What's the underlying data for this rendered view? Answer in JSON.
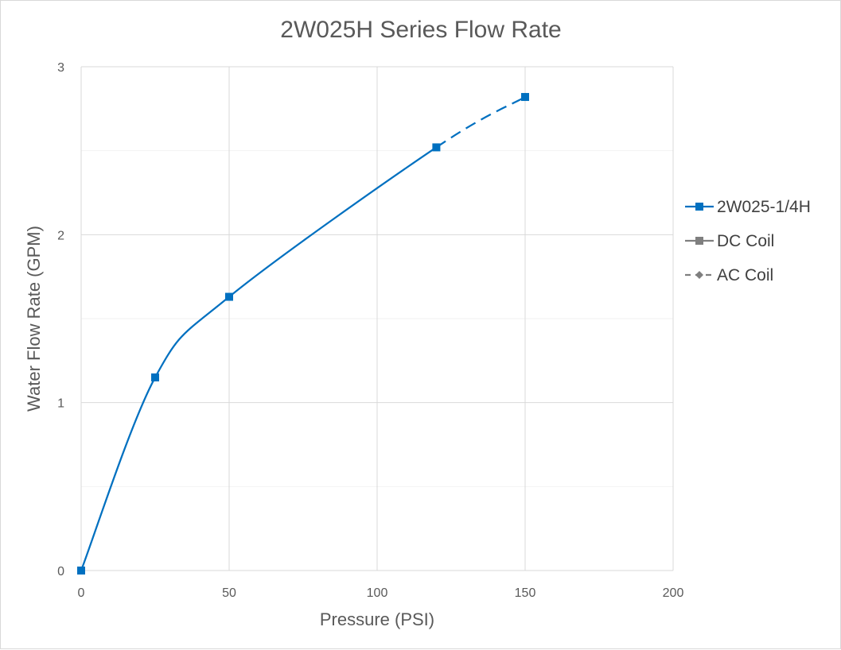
{
  "chart_data": {
    "type": "line",
    "title": "2W025H Series Flow Rate",
    "xlabel": "Pressure (PSI)",
    "ylabel": "Water Flow Rate (GPM)",
    "xlim": [
      0,
      200
    ],
    "ylim": [
      0,
      3
    ],
    "x_ticks": [
      0,
      50,
      100,
      150,
      200
    ],
    "y_ticks": [
      0,
      1,
      2,
      3
    ],
    "grid": true,
    "legend_position": "right",
    "series": [
      {
        "name": "2W025-1/4H",
        "color": "#0070c0",
        "marker": "square",
        "line_style": "solid-then-dashed",
        "x": [
          0,
          25,
          50,
          120,
          150
        ],
        "y": [
          0,
          1.15,
          1.63,
          2.52,
          2.82
        ]
      }
    ],
    "legend": [
      {
        "label": "2W025-1/4H",
        "color": "#0070c0",
        "marker": "square",
        "line_style": "solid"
      },
      {
        "label": "DC Coil",
        "color": "#7f7f7f",
        "marker": "square",
        "line_style": "solid"
      },
      {
        "label": "AC Coil",
        "color": "#7f7f7f",
        "marker": "diamond",
        "line_style": "dashed"
      }
    ]
  }
}
